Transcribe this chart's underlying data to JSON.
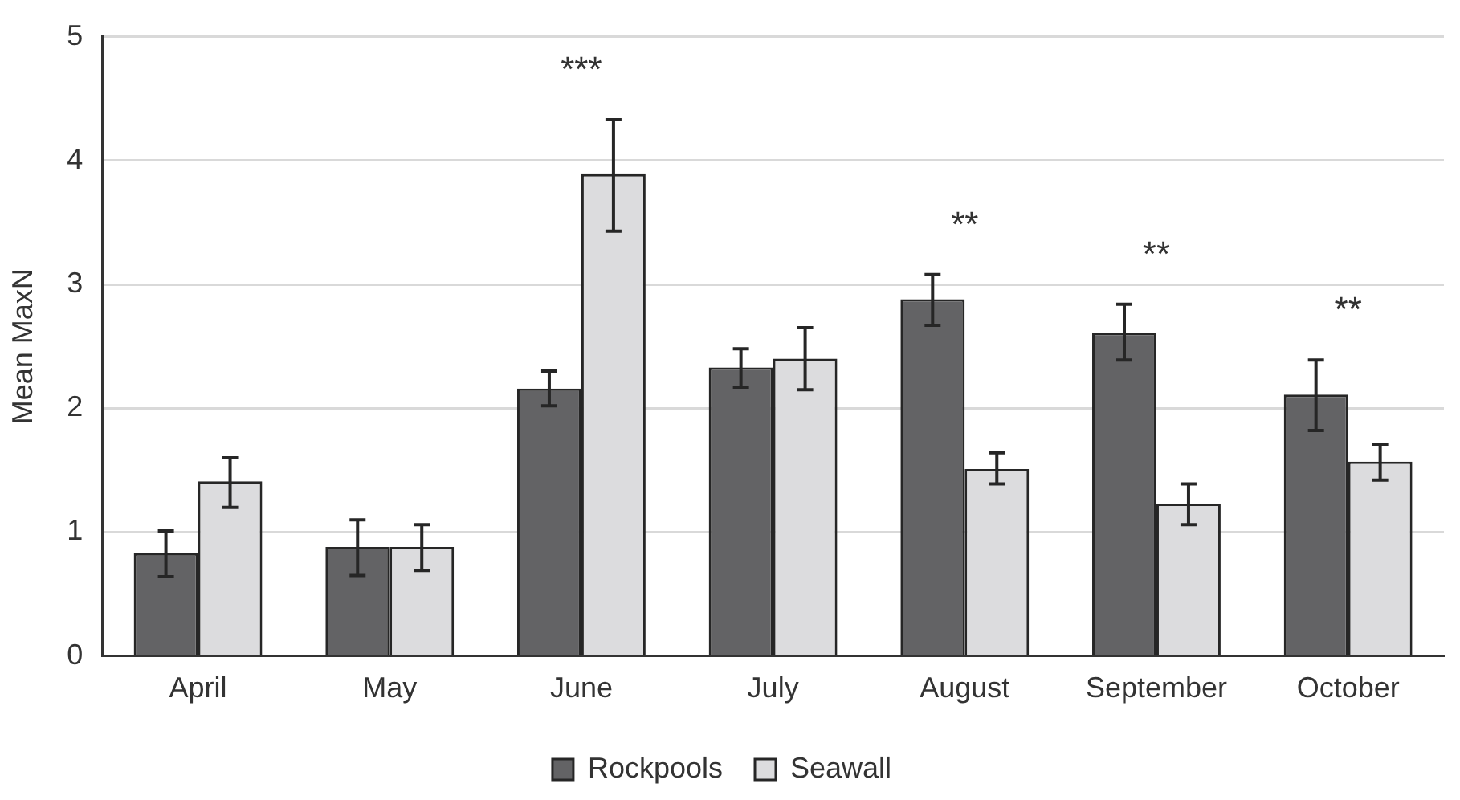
{
  "chart_data": {
    "type": "bar",
    "ylabel": "Mean MaxN",
    "categories": [
      "April",
      "May",
      "June",
      "July",
      "August",
      "September",
      "October"
    ],
    "series": [
      {
        "name": "Rockpools",
        "color": "#636365",
        "values": [
          0.83,
          0.88,
          2.16,
          2.33,
          2.88,
          2.61,
          2.11
        ],
        "errors": [
          [
            0.64,
            1.01
          ],
          [
            0.65,
            1.1
          ],
          [
            2.02,
            2.3
          ],
          [
            2.17,
            2.48
          ],
          [
            2.67,
            3.08
          ],
          [
            2.39,
            2.84
          ],
          [
            1.82,
            2.39
          ]
        ]
      },
      {
        "name": "Seawall",
        "color": "#dcdcde",
        "values": [
          1.41,
          0.88,
          3.89,
          2.4,
          1.51,
          1.23,
          1.57
        ],
        "errors": [
          [
            1.2,
            1.6
          ],
          [
            0.69,
            1.06
          ],
          [
            3.43,
            4.33
          ],
          [
            2.15,
            2.65
          ],
          [
            1.39,
            1.64
          ],
          [
            1.06,
            1.39
          ],
          [
            1.42,
            1.71
          ]
        ]
      }
    ],
    "ylim": [
      0,
      5
    ],
    "yticks": [
      0,
      1,
      2,
      3,
      4,
      5
    ],
    "grid": "y",
    "legend": "bottom",
    "annotations": [
      "***",
      "**",
      "**",
      "**"
    ]
  }
}
